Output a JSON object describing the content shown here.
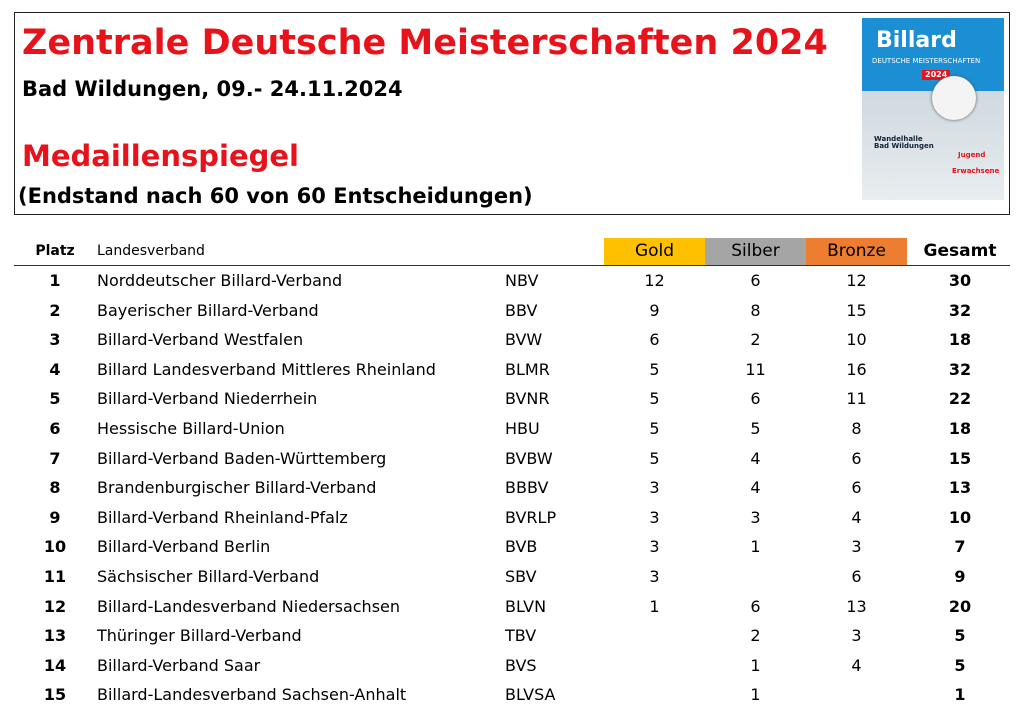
{
  "header": {
    "title": "Zentrale Deutsche Meisterschaften 2024",
    "subtitle": "Bad Wildungen, 09.- 24.11.2024",
    "heading": "Medaillenspiegel",
    "note": "(Endstand nach 60 von 60 Entscheidungen)"
  },
  "poster": {
    "brand": "Billard",
    "line": "DEUTSCHE MEISTERSCHAFTEN",
    "year": "2024",
    "venue": "Wandelhalle Bad Wildungen",
    "youth": "Jugend",
    "adults": "Erwachsene"
  },
  "table": {
    "columns": [
      "Platz",
      "Landesverband",
      "Gold",
      "Silber",
      "Bronze",
      "Gesamt"
    ],
    "rows": [
      [
        1,
        "Norddeutscher Billard-Verband",
        "NBV",
        12,
        6,
        12,
        30
      ],
      [
        2,
        "Bayerischer Billard-Verband",
        "BBV",
        9,
        8,
        15,
        32
      ],
      [
        3,
        "Billard-Verband Westfalen",
        "BVW",
        6,
        2,
        10,
        18
      ],
      [
        4,
        "Billard Landesverband Mittleres Rheinland",
        "BLMR",
        5,
        11,
        16,
        32
      ],
      [
        5,
        "Billard-Verband Niederrhein",
        "BVNR",
        5,
        6,
        11,
        22
      ],
      [
        6,
        "Hessische Billard-Union",
        "HBU",
        5,
        5,
        8,
        18
      ],
      [
        7,
        "Billard-Verband Baden-Württemberg",
        "BVBW",
        5,
        4,
        6,
        15
      ],
      [
        8,
        "Brandenburgischer Billard-Verband",
        "BBBV",
        3,
        4,
        6,
        13
      ],
      [
        9,
        "Billard-Verband Rheinland-Pfalz",
        "BVRLP",
        3,
        3,
        4,
        10
      ],
      [
        10,
        "Billard-Verband Berlin",
        "BVB",
        3,
        1,
        3,
        7
      ],
      [
        11,
        "Sächsischer Billard-Verband",
        "SBV",
        3,
        null,
        6,
        9
      ],
      [
        12,
        "Billard-Landesverband Niedersachsen",
        "BLVN",
        1,
        6,
        13,
        20
      ],
      [
        13,
        "Thüringer Billard-Verband",
        "TBV",
        null,
        2,
        3,
        5
      ],
      [
        14,
        "Billard-Verband Saar",
        "BVS",
        null,
        1,
        4,
        5
      ],
      [
        15,
        "Billard-Landesverband Sachsen-Anhalt",
        "BLVSA",
        null,
        1,
        null,
        1
      ]
    ]
  }
}
